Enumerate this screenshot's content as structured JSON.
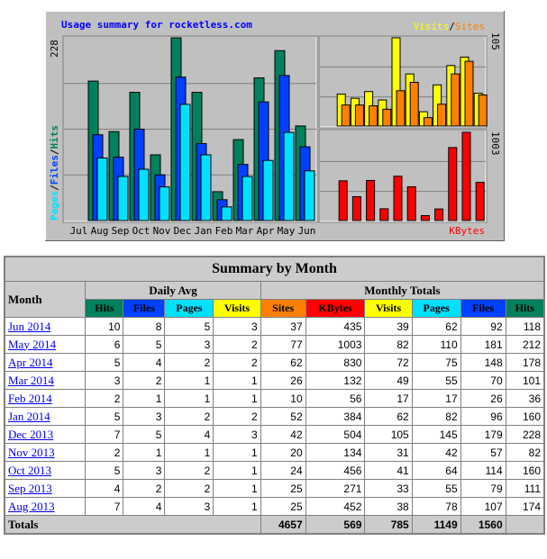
{
  "chart_data": [
    {
      "type": "bar",
      "title": "Usage summary for rocketless.com",
      "ylabel": "Pages / Files / Hits",
      "categories": [
        "Jul",
        "Aug",
        "Sep",
        "Oct",
        "Nov",
        "Dec",
        "Jan",
        "Feb",
        "Mar",
        "Apr",
        "May",
        "Jun"
      ],
      "ymax_label": "228",
      "ylim": [
        0,
        228
      ],
      "series": [
        {
          "name": "Hits",
          "color": "#00805c",
          "values": [
            0,
            174,
            111,
            160,
            82,
            228,
            160,
            36,
            101,
            178,
            212,
            118
          ]
        },
        {
          "name": "Files",
          "color": "#0040ff",
          "values": [
            0,
            107,
            79,
            114,
            57,
            179,
            96,
            26,
            70,
            148,
            181,
            92
          ]
        },
        {
          "name": "Pages",
          "color": "#00e0ff",
          "values": [
            0,
            78,
            55,
            64,
            42,
            145,
            82,
            17,
            55,
            75,
            110,
            62
          ]
        }
      ]
    },
    {
      "type": "bar",
      "title": "Visits / Sites",
      "ymax_label": "105",
      "ylim": [
        0,
        105
      ],
      "series": [
        {
          "name": "Visits",
          "color": "#ffff00",
          "values": [
            0,
            38,
            33,
            41,
            31,
            105,
            62,
            17,
            49,
            72,
            82,
            39
          ]
        },
        {
          "name": "Sites",
          "color": "#ff8000",
          "values": [
            0,
            25,
            25,
            24,
            20,
            42,
            52,
            10,
            26,
            62,
            77,
            37
          ]
        }
      ]
    },
    {
      "type": "bar",
      "title": "KBytes",
      "ymax_label": "1003",
      "ylim": [
        0,
        1003
      ],
      "series": [
        {
          "name": "KBytes",
          "color": "#ff0000",
          "values": [
            0,
            452,
            271,
            456,
            134,
            504,
            384,
            56,
            132,
            830,
            1003,
            435
          ]
        }
      ]
    }
  ],
  "table": {
    "title": "Summary by Month",
    "month_header": "Month",
    "daily_avg_header": "Daily Avg",
    "monthly_totals_header": "Monthly Totals",
    "daily_cols": [
      {
        "label": "Hits",
        "color": "#00805c"
      },
      {
        "label": "Files",
        "color": "#0040ff"
      },
      {
        "label": "Pages",
        "color": "#00e0ff"
      },
      {
        "label": "Visits",
        "color": "#ffff00"
      }
    ],
    "monthly_cols": [
      {
        "label": "Sites",
        "color": "#ff8000"
      },
      {
        "label": "KBytes",
        "color": "#ff0000"
      },
      {
        "label": "Visits",
        "color": "#ffff00"
      },
      {
        "label": "Pages",
        "color": "#00e0ff"
      },
      {
        "label": "Files",
        "color": "#0040ff"
      },
      {
        "label": "Hits",
        "color": "#00805c"
      }
    ],
    "rows": [
      {
        "month": "Jun 2014",
        "daily": [
          "10",
          "8",
          "5",
          "3"
        ],
        "monthly": [
          "37",
          "435",
          "39",
          "62",
          "92",
          "118"
        ]
      },
      {
        "month": "May 2014",
        "daily": [
          "6",
          "5",
          "3",
          "2"
        ],
        "monthly": [
          "77",
          "1003",
          "82",
          "110",
          "181",
          "212"
        ]
      },
      {
        "month": "Apr 2014",
        "daily": [
          "5",
          "4",
          "2",
          "2"
        ],
        "monthly": [
          "62",
          "830",
          "72",
          "75",
          "148",
          "178"
        ]
      },
      {
        "month": "Mar 2014",
        "daily": [
          "3",
          "2",
          "1",
          "1"
        ],
        "monthly": [
          "26",
          "132",
          "49",
          "55",
          "70",
          "101"
        ]
      },
      {
        "month": "Feb 2014",
        "daily": [
          "2",
          "1",
          "1",
          "1"
        ],
        "monthly": [
          "10",
          "56",
          "17",
          "17",
          "26",
          "36"
        ]
      },
      {
        "month": "Jan 2014",
        "daily": [
          "5",
          "3",
          "2",
          "2"
        ],
        "monthly": [
          "52",
          "384",
          "62",
          "82",
          "96",
          "160"
        ]
      },
      {
        "month": "Dec 2013",
        "daily": [
          "7",
          "5",
          "4",
          "3"
        ],
        "monthly": [
          "42",
          "504",
          "105",
          "145",
          "179",
          "228"
        ]
      },
      {
        "month": "Nov 2013",
        "daily": [
          "2",
          "1",
          "1",
          "1"
        ],
        "monthly": [
          "20",
          "134",
          "31",
          "42",
          "57",
          "82"
        ]
      },
      {
        "month": "Oct 2013",
        "daily": [
          "5",
          "3",
          "2",
          "1"
        ],
        "monthly": [
          "24",
          "456",
          "41",
          "64",
          "114",
          "160"
        ]
      },
      {
        "month": "Sep 2013",
        "daily": [
          "4",
          "2",
          "2",
          "1"
        ],
        "monthly": [
          "25",
          "271",
          "33",
          "55",
          "79",
          "111"
        ]
      },
      {
        "month": "Aug 2013",
        "daily": [
          "7",
          "4",
          "3",
          "1"
        ],
        "monthly": [
          "25",
          "452",
          "38",
          "78",
          "107",
          "174"
        ]
      }
    ],
    "totals_label": "Totals",
    "totals": [
      "4657",
      "569",
      "785",
      "1149",
      "1560"
    ]
  },
  "colors": {
    "chart_bg": "#c0c0c0",
    "title_text": "#0000ff",
    "grid": "#808080"
  }
}
